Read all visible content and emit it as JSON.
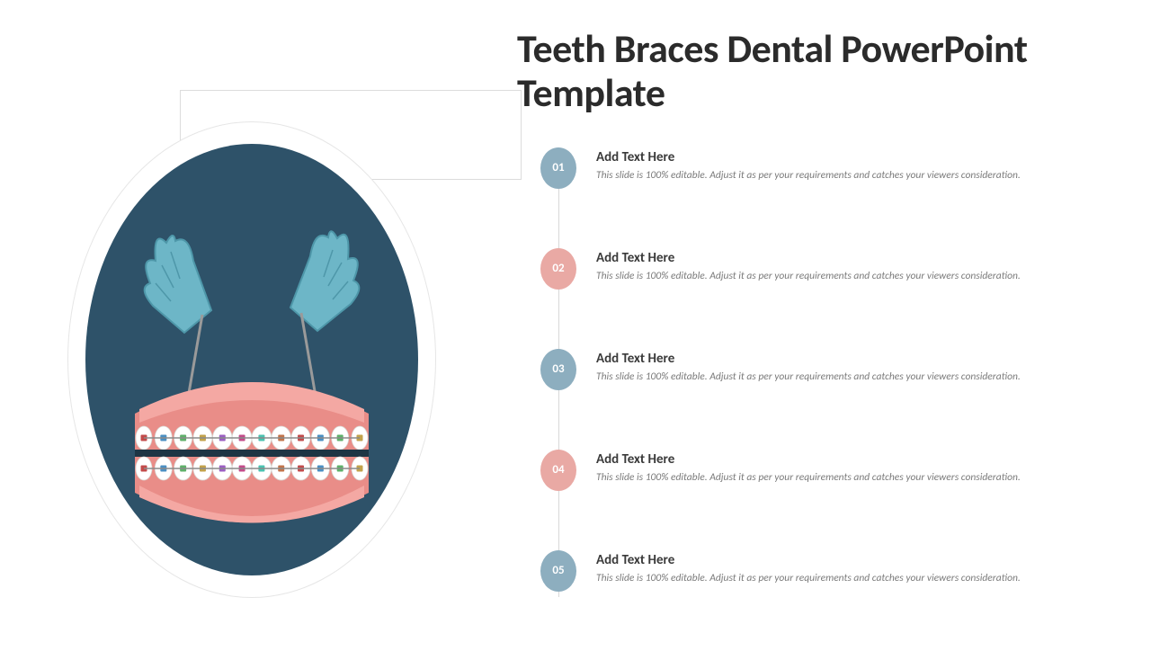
{
  "title": "Teeth Braces Dental PowerPoint Template",
  "colors": {
    "oval_bg": "#2e5269",
    "gums": "#e98d88",
    "gums_light": "#f4a8a3",
    "tooth": "#ffffff",
    "tooth_shade": "#e9e7e2",
    "glove": "#6db6c7",
    "glove_shade": "#4e97a9",
    "tool": "#9a9a9a",
    "badge_blue": "#8daebf",
    "badge_pink": "#e9a9a4",
    "line": "#d8d8d8",
    "text_heading": "#3a3a3a",
    "text_desc": "#7a7a7a"
  },
  "items": [
    {
      "num": "01",
      "color": "#8daebf",
      "heading": "Add Text Here",
      "desc": "This slide is 100% editable. Adjust it as per your requirements and catches your viewers consideration."
    },
    {
      "num": "02",
      "color": "#e9a9a4",
      "heading": "Add Text Here",
      "desc": "This slide is 100% editable. Adjust it as per your requirements and catches your viewers consideration."
    },
    {
      "num": "03",
      "color": "#8daebf",
      "heading": "Add Text Here",
      "desc": "This slide is 100% editable. Adjust it as per your requirements and catches your viewers consideration."
    },
    {
      "num": "04",
      "color": "#e9a9a4",
      "heading": "Add Text Here",
      "desc": "This slide is 100% editable. Adjust it as per your requirements and catches your viewers consideration."
    },
    {
      "num": "05",
      "color": "#8daebf",
      "heading": "Add Text Here",
      "desc": "This slide is 100% editable. Adjust it as per your requirements and catches your viewers consideration."
    }
  ],
  "brace_colors": [
    "#c24b4b",
    "#4b8fc2",
    "#5fb06a",
    "#c2a24b",
    "#9b5fc2",
    "#c24b8a",
    "#4bc2b0",
    "#c2744b"
  ]
}
